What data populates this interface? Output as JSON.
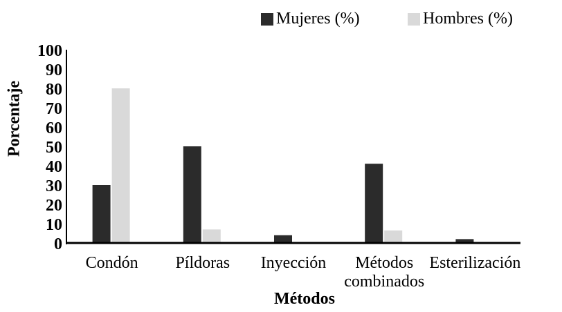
{
  "chart_data": {
    "type": "bar",
    "categories": [
      "Condón",
      "Píldoras",
      "Inyección",
      "Métodos\ncombinados",
      "Esterilización"
    ],
    "series": [
      {
        "name": "Mujeres (%)",
        "color": "#2b2b2b",
        "values": [
          30,
          50,
          4,
          41,
          2
        ]
      },
      {
        "name": "Hombres (%)",
        "color": "#d9d9d9",
        "values": [
          80,
          7,
          0,
          6.5,
          0
        ]
      }
    ],
    "xlabel": "Métodos",
    "ylabel": "Porcentaje",
    "ylim": [
      0,
      100
    ],
    "yticks": [
      0,
      10,
      20,
      30,
      40,
      50,
      60,
      70,
      80,
      90,
      100
    ],
    "legend": "top"
  }
}
